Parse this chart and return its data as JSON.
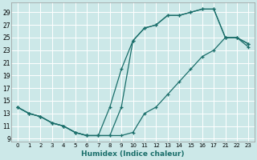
{
  "xlabel": "Humidex (Indice chaleur)",
  "bg_color": "#cce8e8",
  "line_color": "#1a6e6a",
  "grid_color": "#ffffff",
  "ylim": [
    8.5,
    30.5
  ],
  "yticks": [
    9,
    11,
    13,
    15,
    17,
    19,
    21,
    23,
    25,
    27,
    29
  ],
  "xtick_positions": [
    0,
    1,
    2,
    3,
    4,
    5,
    6,
    7,
    8,
    9,
    10,
    11,
    12,
    13,
    14,
    15,
    16,
    17,
    18,
    19,
    20
  ],
  "xtick_labels": [
    "0",
    "1",
    "2",
    "3",
    "4",
    "5",
    "6",
    "7",
    "8",
    "9",
    "10",
    "11",
    "12",
    "13",
    "14",
    "15",
    "16",
    "17",
    "21",
    "22",
    "23"
  ],
  "line1_x": [
    0,
    1,
    2,
    3,
    4,
    5,
    6,
    7,
    8,
    9,
    10,
    11,
    12,
    13,
    14,
    15,
    16,
    17,
    18,
    19,
    20
  ],
  "line1_y": [
    14.0,
    13.0,
    12.5,
    11.5,
    11.0,
    10.0,
    9.5,
    9.5,
    9.5,
    14.0,
    24.5,
    26.5,
    27.0,
    28.5,
    28.5,
    29.0,
    29.5,
    29.5,
    25.0,
    25.0,
    24.0
  ],
  "line2_x": [
    0,
    1,
    2,
    3,
    4,
    5,
    6,
    7,
    8,
    9,
    10,
    11,
    12,
    13,
    14,
    15,
    16,
    17,
    18,
    19,
    20
  ],
  "line2_y": [
    14.0,
    13.0,
    12.5,
    11.5,
    11.0,
    10.0,
    9.5,
    9.5,
    14.0,
    20.0,
    24.5,
    26.5,
    27.0,
    28.5,
    28.5,
    29.0,
    29.5,
    29.5,
    25.0,
    25.0,
    24.0
  ],
  "line3_x": [
    0,
    1,
    2,
    3,
    4,
    5,
    6,
    7,
    8,
    9,
    10,
    11,
    12,
    13,
    14,
    15,
    16,
    17,
    18,
    19,
    20
  ],
  "line3_y": [
    14.0,
    13.0,
    12.5,
    11.5,
    11.0,
    10.0,
    9.5,
    9.5,
    9.5,
    9.5,
    10.0,
    13.0,
    14.0,
    16.0,
    18.0,
    20.0,
    22.0,
    23.0,
    25.0,
    25.0,
    23.5
  ]
}
